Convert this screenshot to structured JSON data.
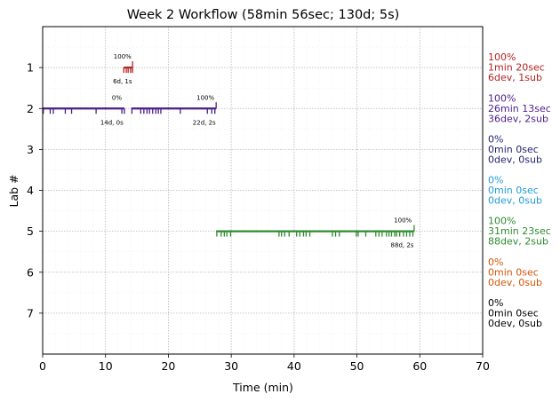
{
  "chart_data": {
    "type": "timeline",
    "title": "Week 2 Workflow (58min 56sec; 130d; 5s)",
    "xlabel": "Time (min)",
    "ylabel": "Lab #",
    "xlim": [
      0,
      70
    ],
    "ylim": [
      8,
      0
    ],
    "xticks": [
      0,
      10,
      20,
      30,
      40,
      50,
      60,
      70
    ],
    "yticks": [
      1,
      2,
      3,
      4,
      5,
      6,
      7
    ],
    "grid": true,
    "series": [
      {
        "lab": 1,
        "color": "#b22222",
        "segments": [
          [
            12.9,
            14.3
          ]
        ],
        "ticks": [
          12.9,
          13.3,
          13.6,
          14.0,
          14.3
        ],
        "end_tick": 14.3,
        "annotations": [
          {
            "text": "100%",
            "x": 12.7,
            "pos": "above"
          },
          {
            "text": "6d, 1s",
            "x": 12.7,
            "pos": "below"
          }
        ],
        "summary": [
          "100%",
          "1min 20sec",
          "6dev, 1sub"
        ]
      },
      {
        "lab": 2,
        "color": "#4b1c8c",
        "segments": [
          [
            0,
            13.0
          ],
          [
            14.1,
            27.6
          ]
        ],
        "ticks": [
          0.1,
          1.2,
          1.7,
          3.6,
          4.6,
          8.5,
          12.6,
          13.0,
          14.2,
          15.6,
          16.1,
          16.6,
          17.0,
          17.5,
          18.0,
          18.4,
          18.8,
          21.9,
          26.2,
          26.9,
          27.4
        ],
        "end_tick": 27.6,
        "annotations": [
          {
            "text": "0%",
            "x": 11.8,
            "pos": "above"
          },
          {
            "text": "14d, 0s",
            "x": 11.0,
            "pos": "below"
          },
          {
            "text": "100%",
            "x": 25.9,
            "pos": "above"
          },
          {
            "text": "22d, 2s",
            "x": 25.7,
            "pos": "below"
          }
        ],
        "summary": [
          "100%",
          "26min 13sec",
          "36dev, 2sub"
        ]
      },
      {
        "lab": 3,
        "color": "#1f1f6e",
        "segments": [],
        "ticks": [],
        "annotations": [],
        "summary": [
          "0%",
          "0min 0sec",
          "0dev, 0sub"
        ]
      },
      {
        "lab": 4,
        "color": "#1f9bd6",
        "segments": [],
        "ticks": [],
        "annotations": [],
        "summary": [
          "0%",
          "0min 0sec",
          "0dev, 0sub"
        ]
      },
      {
        "lab": 5,
        "color": "#2e8b2e",
        "segments": [
          [
            27.6,
            59.1
          ]
        ],
        "ticks": [
          27.7,
          28.4,
          28.9,
          29.3,
          29.9,
          37.6,
          38.0,
          38.5,
          39.2,
          40.4,
          40.9,
          41.5,
          41.9,
          42.5,
          46.1,
          46.6,
          47.2,
          49.9,
          50.2,
          51.4,
          53.0,
          53.5,
          54.0,
          54.7,
          55.1,
          55.5,
          56.0,
          56.3,
          56.8,
          57.4,
          57.9,
          58.4,
          58.9
        ],
        "end_tick": 59.1,
        "annotations": [
          {
            "text": "100%",
            "x": 57.3,
            "pos": "above"
          },
          {
            "text": "88d, 2s",
            "x": 57.2,
            "pos": "below"
          }
        ],
        "summary": [
          "100%",
          "31min 23sec",
          "88dev, 2sub"
        ]
      },
      {
        "lab": 6,
        "color": "#d2550a",
        "segments": [],
        "ticks": [],
        "annotations": [],
        "summary": [
          "0%",
          "0min 0sec",
          "0dev, 0sub"
        ]
      },
      {
        "lab": 7,
        "color": "#000000",
        "segments": [],
        "ticks": [],
        "annotations": [],
        "summary": [
          "0%",
          "0min 0sec",
          "0dev, 0sub"
        ]
      }
    ]
  }
}
